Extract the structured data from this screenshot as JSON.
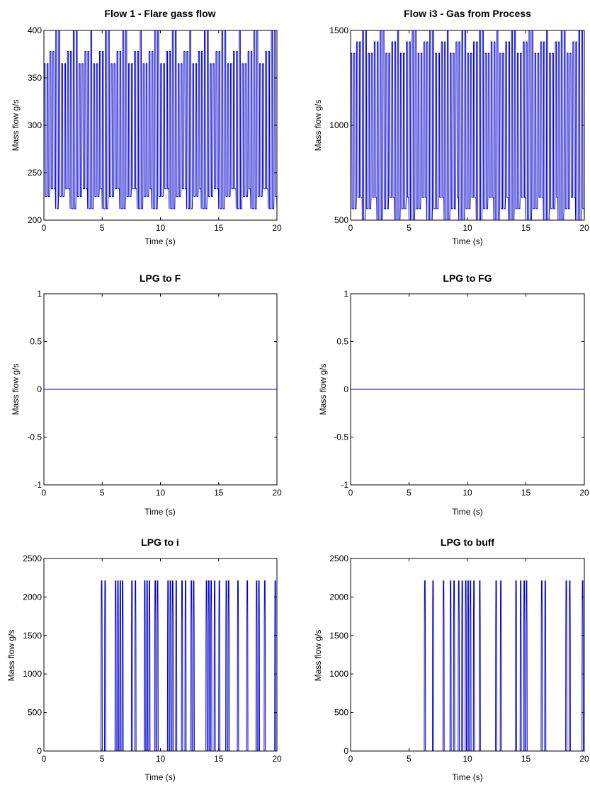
{
  "chart_data": [
    {
      "type": "line",
      "title": "Flow 1 - Flare gass flow",
      "xlabel": "Time (s)",
      "ylabel": "Mass flow g/s",
      "xlim": [
        0,
        20
      ],
      "ylim": [
        200,
        400
      ],
      "xticks": [
        0,
        5,
        10,
        15,
        20
      ],
      "yticks": [
        200,
        250,
        300,
        350,
        400
      ],
      "color": "#0000cc",
      "signal": {
        "kind": "beating_square_oscillation",
        "period_s": 0.25,
        "levels": [
          212,
          225,
          233,
          365,
          378,
          400
        ],
        "approximate": true
      }
    },
    {
      "type": "line",
      "title": "Flow i3 - Gas from Process",
      "xlabel": "Time (s)",
      "ylabel": "Mass flow g/s",
      "xlim": [
        0,
        20
      ],
      "ylim": [
        500,
        1500
      ],
      "xticks": [
        0,
        5,
        10,
        15,
        20
      ],
      "yticks": [
        500,
        1000,
        1500
      ],
      "color": "#0000cc",
      "signal": {
        "kind": "beating_square_oscillation",
        "period_s": 0.25,
        "levels": [
          500,
          560,
          620,
          1380,
          1440,
          1500
        ],
        "approximate": true
      }
    },
    {
      "type": "line",
      "title": "LPG to F",
      "xlabel": "Time (s)",
      "ylabel": "Mass flow g/s",
      "xlim": [
        0,
        20
      ],
      "ylim": [
        -1,
        1
      ],
      "xticks": [
        0,
        5,
        10,
        15,
        20
      ],
      "yticks": [
        -1,
        -0.5,
        0,
        0.5,
        1
      ],
      "color": "#0000cc",
      "x": [
        0,
        20
      ],
      "y": [
        0,
        0
      ]
    },
    {
      "type": "line",
      "title": "LPG to FG",
      "xlabel": "Time (s)",
      "ylabel": "Mass flow g/s",
      "xlim": [
        0,
        20
      ],
      "ylim": [
        -1,
        1
      ],
      "xticks": [
        0,
        5,
        10,
        15,
        20
      ],
      "yticks": [
        -1,
        -0.5,
        0,
        0.5,
        1
      ],
      "color": "#0000cc",
      "x": [
        0,
        20
      ],
      "y": [
        0,
        0
      ]
    },
    {
      "type": "line",
      "title": "LPG to i",
      "xlabel": "Time (s)",
      "ylabel": "Mass flow g/s",
      "xlim": [
        0,
        20
      ],
      "ylim": [
        0,
        2500
      ],
      "xticks": [
        0,
        5,
        10,
        15,
        20
      ],
      "yticks": [
        0,
        500,
        1000,
        1500,
        2000,
        2500
      ],
      "color": "#0000cc",
      "pulses": {
        "shape": "trapezoid",
        "peak": 2210,
        "shoulder": 1650,
        "approximate": true,
        "starts": [
          4.9,
          5.2,
          6.1,
          6.3,
          6.5,
          6.7,
          7.5,
          7.8,
          8.6,
          8.8,
          9.0,
          9.5,
          9.7,
          10.6,
          10.8,
          11.0,
          11.3,
          11.8,
          12.1,
          12.6,
          12.8,
          13.9,
          14.1,
          14.3,
          14.6,
          15.0,
          15.6,
          15.8,
          16.6,
          17.4,
          18.2,
          18.4,
          18.9,
          19.8
        ]
      }
    },
    {
      "type": "line",
      "title": "LPG to buff",
      "xlabel": "Time (s)",
      "ylabel": "Mass flow g/s",
      "xlim": [
        0,
        20
      ],
      "ylim": [
        0,
        2500
      ],
      "xticks": [
        0,
        5,
        10,
        15,
        20
      ],
      "yticks": [
        0,
        500,
        1000,
        1500,
        2000,
        2500
      ],
      "color": "#0000cc",
      "pulses": {
        "shape": "trapezoid",
        "peak": 2210,
        "shoulder": 1650,
        "approximate": true,
        "starts": [
          6.3,
          7.0,
          7.9,
          8.5,
          8.8,
          9.2,
          9.5,
          9.8,
          10.0,
          10.2,
          10.5,
          11.0,
          12.4,
          12.8,
          14.1,
          14.5,
          14.8,
          15.0,
          16.3,
          16.6,
          18.4,
          18.7,
          19.8
        ]
      }
    }
  ]
}
